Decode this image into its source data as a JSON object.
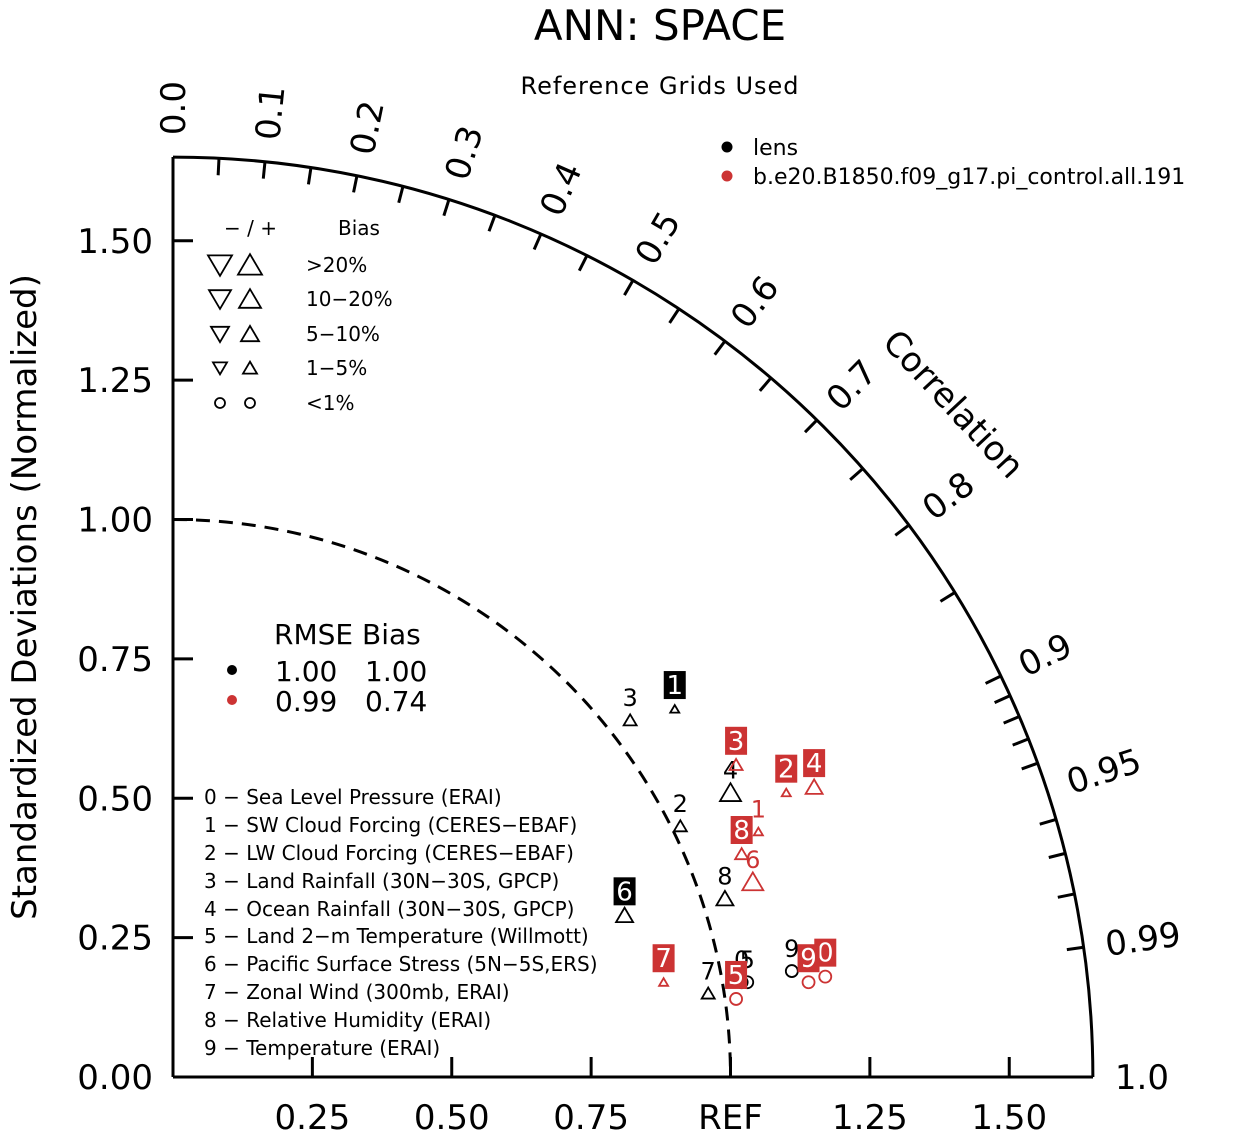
{
  "colors": {
    "lens": "#000000",
    "model": "#cc3333"
  },
  "chart_data": {
    "type": "scatter",
    "subtype": "taylor-diagram",
    "title": "ANN: SPACE",
    "subtitle": "Reference Grids Used",
    "ylabel": "Standardized Deviations (Normalized)",
    "correlation_label": "Correlation",
    "std_max": 1.65,
    "std_ticks": [
      "0.00",
      "0.25",
      "0.50",
      "0.75",
      "1.00",
      "1.25",
      "1.50"
    ],
    "x_ticks": [
      {
        "value": 0.25,
        "label": "0.25"
      },
      {
        "value": 0.5,
        "label": "0.50"
      },
      {
        "value": 0.75,
        "label": "0.75"
      },
      {
        "value": 1.0,
        "label": "REF"
      },
      {
        "value": 1.25,
        "label": "1.25"
      },
      {
        "value": 1.5,
        "label": "1.50"
      }
    ],
    "correlation_labels": [
      "0.0",
      "0.1",
      "0.2",
      "0.3",
      "0.4",
      "0.5",
      "0.6",
      "0.7",
      "0.8",
      "0.9",
      "0.95",
      "0.99",
      "1.0"
    ],
    "reference_std": 1.0,
    "legend": [
      {
        "name": "lens",
        "color": "#000000"
      },
      {
        "name": "b.e20.B1850.f09_g17.pi_control.all.191",
        "color": "#cc3333"
      }
    ],
    "bias_legend": {
      "header_sign": "− / +",
      "header_label": "Bias",
      "rows": [
        {
          "label": ">20%",
          "size": 4
        },
        {
          "label": "10−20%",
          "size": 3
        },
        {
          "label": "5−10%",
          "size": 2
        },
        {
          "label": "1−5%",
          "size": 1
        },
        {
          "label": "<1%",
          "size": 0
        }
      ]
    },
    "rmse_table": {
      "header": "RMSE Bias",
      "rows": [
        {
          "color": "#000000",
          "rmse": "1.00",
          "bias": "1.00"
        },
        {
          "color": "#cc3333",
          "rmse": "0.99",
          "bias": "0.74"
        }
      ]
    },
    "variables": [
      "0 − Sea Level Pressure (ERAI)",
      "1 − SW Cloud Forcing (CERES−EBAF)",
      "2 − LW Cloud Forcing (CERES−EBAF)",
      "3 − Land Rainfall (30N−30S, GPCP)",
      "4 − Ocean Rainfall (30N−30S, GPCP)",
      "5 − Land 2−m Temperature (Willmott)",
      "6 − Pacific Surface Stress (5N−5S,ERS)",
      "7 − Zonal Wind (300mb, ERAI)",
      "8 − Relative Humidity (ERAI)",
      "9 − Temperature (ERAI)"
    ],
    "series": [
      {
        "name": "lens",
        "color": "#000000",
        "points": [
          {
            "id": "0",
            "x": 1.02,
            "y": 0.17,
            "marker": "circle",
            "size": 0,
            "boxed": false
          },
          {
            "id": "1",
            "x": 0.9,
            "y": 0.66,
            "marker": "tri-up",
            "size": 1,
            "boxed": true
          },
          {
            "id": "2",
            "x": 0.91,
            "y": 0.45,
            "marker": "tri-up",
            "size": 2,
            "boxed": false
          },
          {
            "id": "3",
            "x": 0.82,
            "y": 0.64,
            "marker": "tri-up",
            "size": 2,
            "boxed": false
          },
          {
            "id": "4",
            "x": 1.0,
            "y": 0.51,
            "marker": "tri-up",
            "size": 4,
            "boxed": false
          },
          {
            "id": "5",
            "x": 1.03,
            "y": 0.17,
            "marker": "circle",
            "size": 0,
            "boxed": false
          },
          {
            "id": "6",
            "x": 0.81,
            "y": 0.29,
            "marker": "tri-up",
            "size": 3,
            "boxed": true
          },
          {
            "id": "7",
            "x": 0.96,
            "y": 0.15,
            "marker": "tri-up",
            "size": 2,
            "boxed": false
          },
          {
            "id": "8",
            "x": 0.99,
            "y": 0.32,
            "marker": "tri-up",
            "size": 3,
            "boxed": false
          },
          {
            "id": "9",
            "x": 1.11,
            "y": 0.19,
            "marker": "circle",
            "size": 0,
            "boxed": false
          }
        ]
      },
      {
        "name": "b.e20.B1850.f09_g17.pi_control.all.191",
        "color": "#cc3333",
        "points": [
          {
            "id": "0",
            "x": 1.17,
            "y": 0.18,
            "marker": "circle",
            "size": 0,
            "boxed": true
          },
          {
            "id": "1",
            "x": 1.05,
            "y": 0.44,
            "marker": "tri-up",
            "size": 1,
            "boxed": false
          },
          {
            "id": "2",
            "x": 1.1,
            "y": 0.51,
            "marker": "tri-up",
            "size": 1,
            "boxed": true
          },
          {
            "id": "3",
            "x": 1.01,
            "y": 0.56,
            "marker": "tri-up",
            "size": 2,
            "boxed": true
          },
          {
            "id": "4",
            "x": 1.15,
            "y": 0.52,
            "marker": "tri-up",
            "size": 3,
            "boxed": true
          },
          {
            "id": "5",
            "x": 1.01,
            "y": 0.14,
            "marker": "circle",
            "size": 0,
            "boxed": true
          },
          {
            "id": "6",
            "x": 1.04,
            "y": 0.35,
            "marker": "tri-up",
            "size": 4,
            "boxed": false
          },
          {
            "id": "7",
            "x": 0.88,
            "y": 0.17,
            "marker": "tri-up",
            "size": 1,
            "boxed": true
          },
          {
            "id": "8",
            "x": 1.02,
            "y": 0.4,
            "marker": "tri-up",
            "size": 2,
            "boxed": true
          },
          {
            "id": "9",
            "x": 1.14,
            "y": 0.17,
            "marker": "circle",
            "size": 0,
            "boxed": true
          }
        ]
      }
    ]
  }
}
